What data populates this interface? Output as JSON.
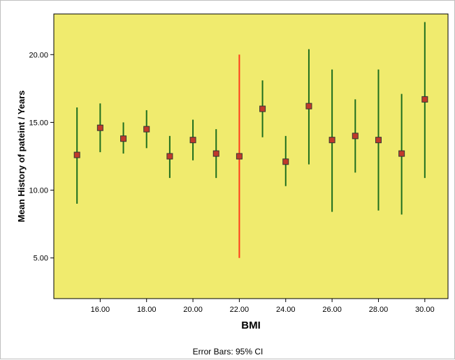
{
  "chart_data": {
    "type": "errorbar",
    "xlabel": "BMI",
    "ylabel": "Mean History of pateint / Years",
    "footnote": "Error Bars: 95% CI",
    "xlim": [
      14,
      31
    ],
    "ylim": [
      2.0,
      23.0
    ],
    "x_ticks": [
      16,
      18,
      20,
      22,
      24,
      26,
      28,
      30
    ],
    "x_tick_labels": [
      "16.00",
      "18.00",
      "20.00",
      "22.00",
      "24.00",
      "26.00",
      "28.00",
      "30.00"
    ],
    "y_ticks": [
      5,
      10,
      15,
      20
    ],
    "y_tick_labels": [
      "5.00",
      "10.00",
      "15.00",
      "20.00"
    ],
    "grid": false,
    "colors": {
      "plot_background": "#f0eb6e",
      "error_bar": "#1e6e1e",
      "highlight_bar": "#ff3a1a",
      "marker_fill": "#c0392b",
      "marker_edge": "#333333"
    },
    "points": [
      {
        "x": 15,
        "mean": 12.6,
        "lower": 9.0,
        "upper": 16.1
      },
      {
        "x": 16,
        "mean": 14.6,
        "lower": 12.8,
        "upper": 16.4
      },
      {
        "x": 17,
        "mean": 13.8,
        "lower": 12.7,
        "upper": 15.0
      },
      {
        "x": 18,
        "mean": 14.5,
        "lower": 13.1,
        "upper": 15.9
      },
      {
        "x": 19,
        "mean": 12.5,
        "lower": 10.9,
        "upper": 14.0
      },
      {
        "x": 20,
        "mean": 13.7,
        "lower": 12.2,
        "upper": 15.2
      },
      {
        "x": 21,
        "mean": 12.7,
        "lower": 10.9,
        "upper": 14.5
      },
      {
        "x": 22,
        "mean": 12.5,
        "lower": 5.0,
        "upper": 20.0,
        "highlight": true
      },
      {
        "x": 23,
        "mean": 16.0,
        "lower": 13.9,
        "upper": 18.1
      },
      {
        "x": 24,
        "mean": 12.1,
        "lower": 10.3,
        "upper": 14.0
      },
      {
        "x": 25,
        "mean": 16.2,
        "lower": 11.9,
        "upper": 20.4
      },
      {
        "x": 26,
        "mean": 13.7,
        "lower": 8.4,
        "upper": 18.9
      },
      {
        "x": 27,
        "mean": 14.0,
        "lower": 11.3,
        "upper": 16.7
      },
      {
        "x": 28,
        "mean": 13.7,
        "lower": 8.5,
        "upper": 18.9
      },
      {
        "x": 29,
        "mean": 12.7,
        "lower": 8.2,
        "upper": 17.1
      },
      {
        "x": 30,
        "mean": 16.7,
        "lower": 10.9,
        "upper": 22.4
      }
    ]
  }
}
